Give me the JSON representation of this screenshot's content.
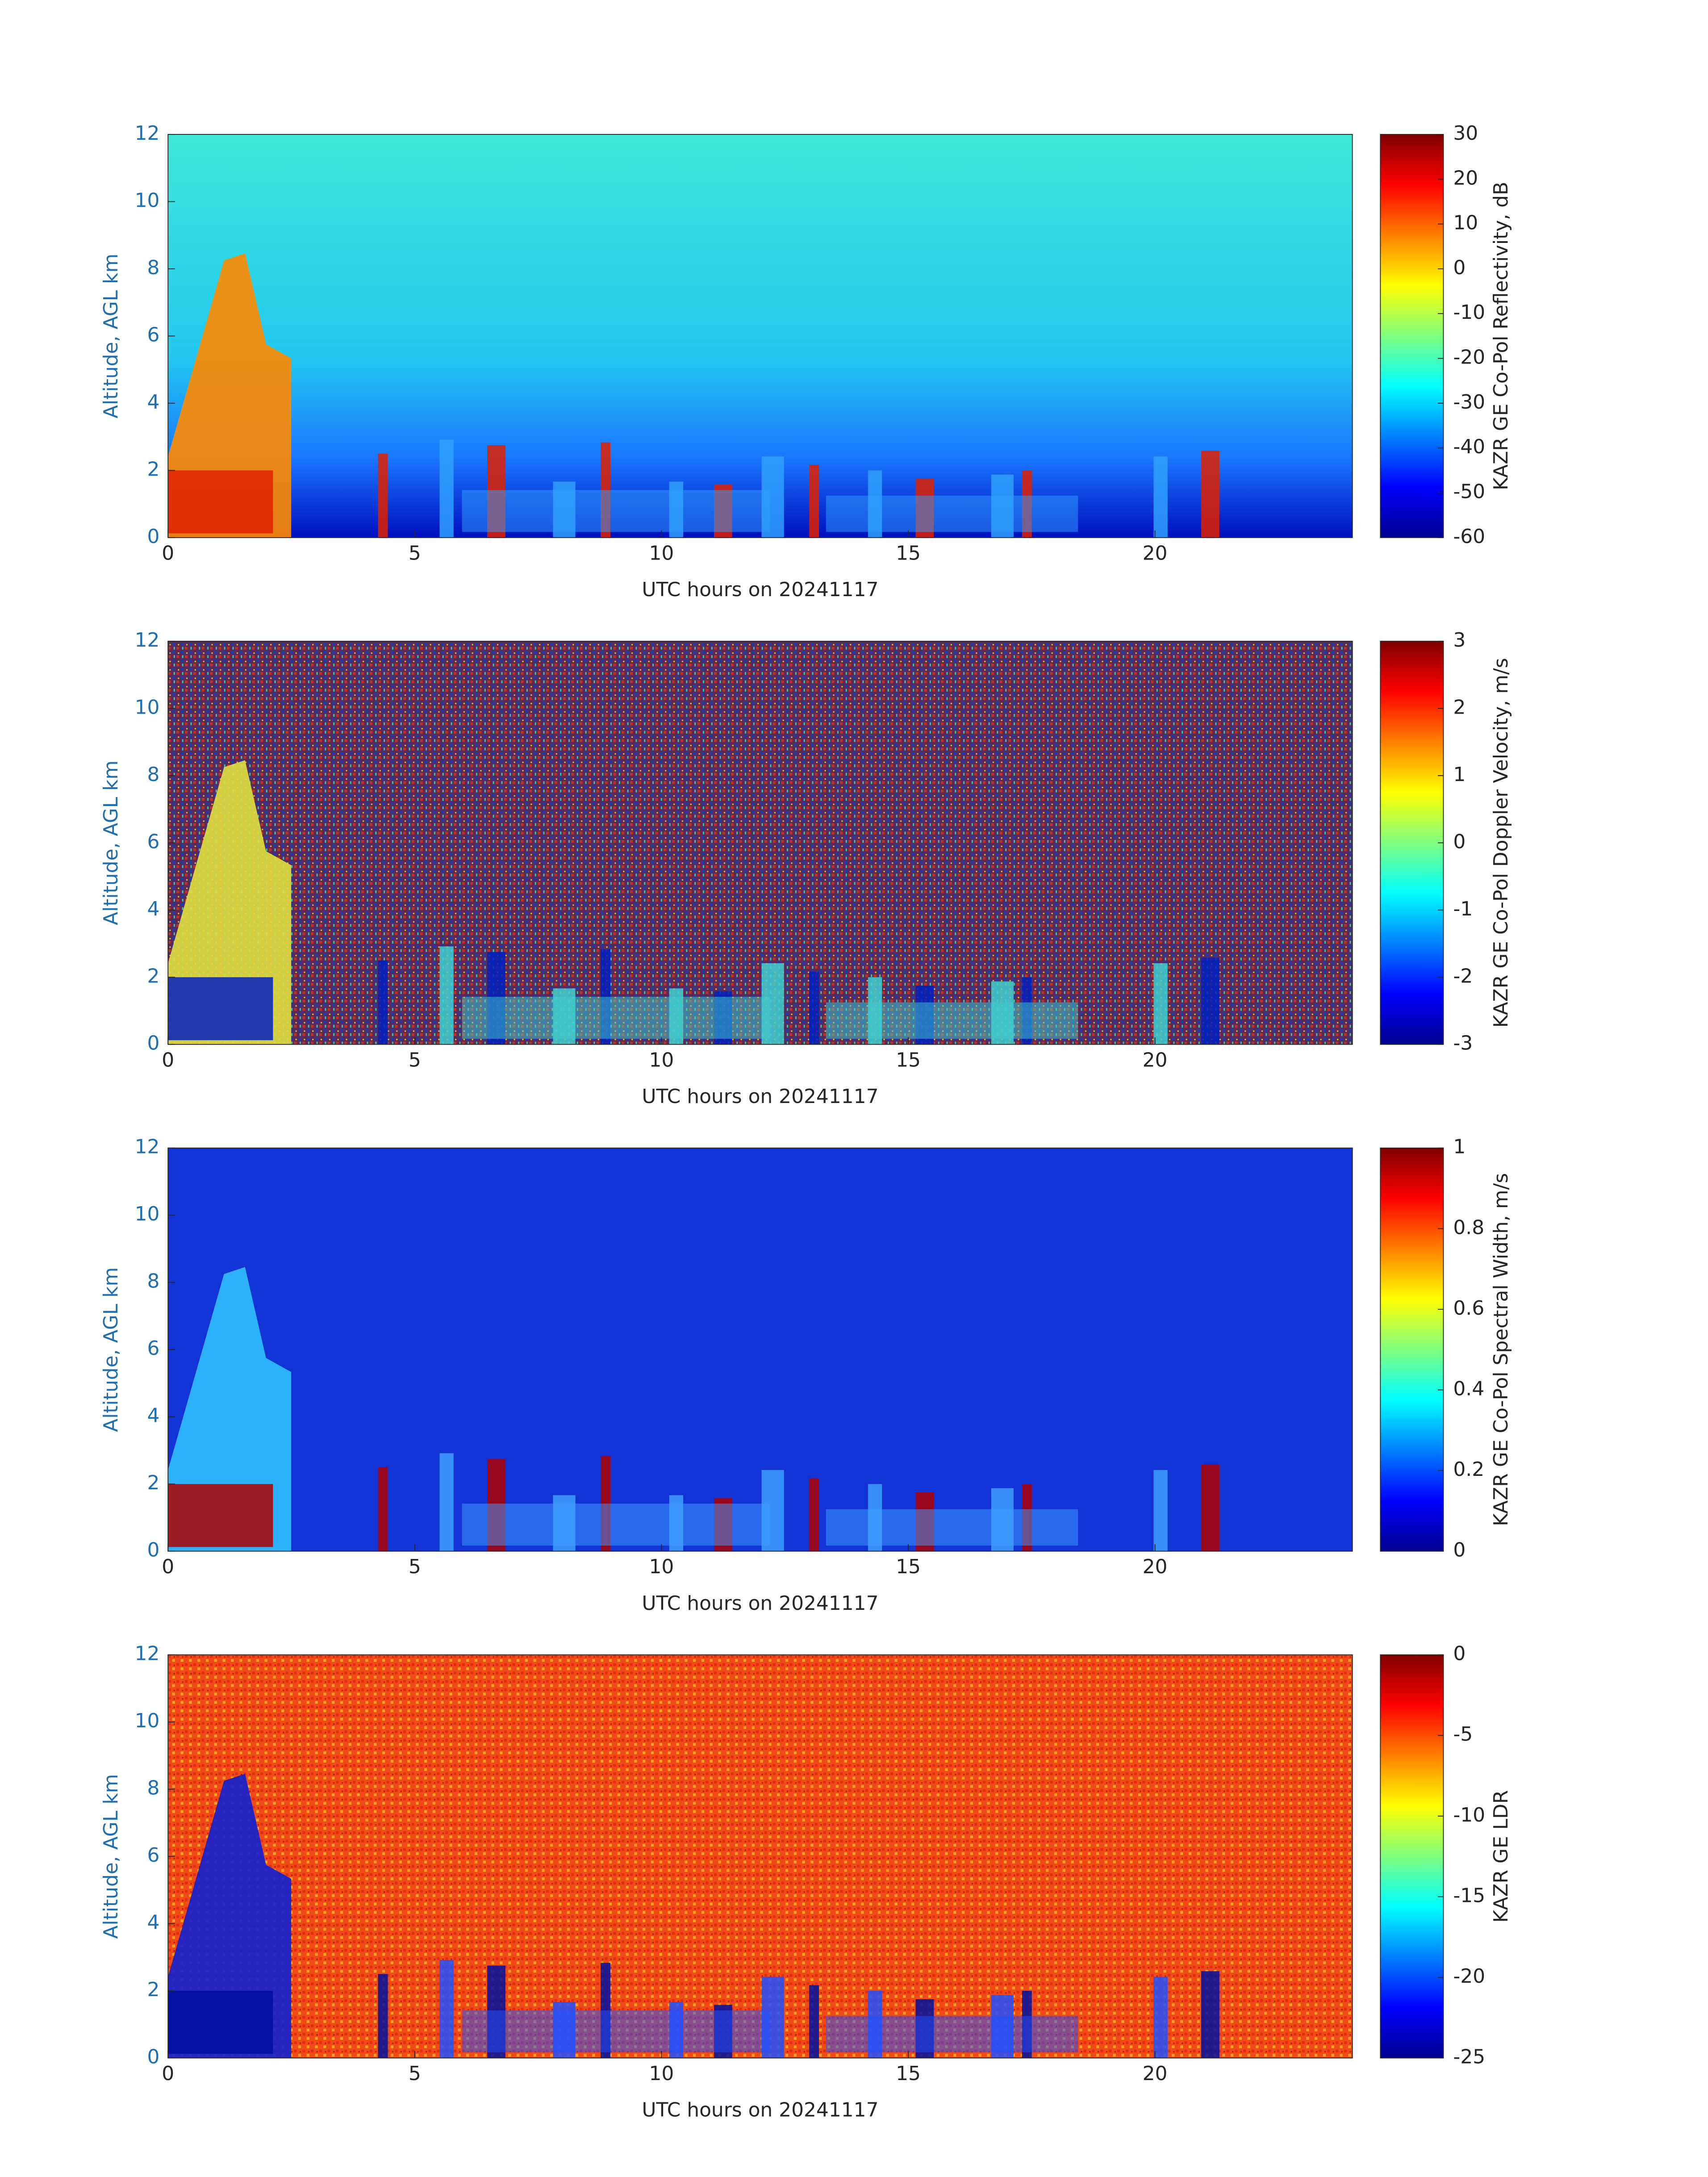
{
  "chart_data": [
    {
      "type": "heatmap",
      "xlabel": "UTC hours on 20241117",
      "ylabel": "Altitude, AGL km",
      "xlim": [
        0,
        24
      ],
      "xticks": [
        0,
        5,
        10,
        15,
        20
      ],
      "ylim": [
        0,
        12
      ],
      "yticks": [
        0,
        2,
        4,
        6,
        8,
        10,
        12
      ],
      "colormap": "jet",
      "colorbar_label": "KAZR GE Co-Pol Reflectivity, dB",
      "clim": [
        -60,
        30
      ],
      "cticks": [
        -60,
        -50,
        -40,
        -30,
        -20,
        -10,
        0,
        10,
        20,
        30
      ]
    },
    {
      "type": "heatmap",
      "xlabel": "UTC hours on 20241117",
      "ylabel": "Altitude, AGL km",
      "xlim": [
        0,
        24
      ],
      "xticks": [
        0,
        5,
        10,
        15,
        20
      ],
      "ylim": [
        0,
        12
      ],
      "yticks": [
        0,
        2,
        4,
        6,
        8,
        10,
        12
      ],
      "colormap": "jet",
      "colorbar_label": "KAZR GE Co-Pol Doppler Velocity, m/s",
      "clim": [
        -3,
        3
      ],
      "cticks": [
        -3,
        -2,
        -1,
        0,
        1,
        2,
        3
      ]
    },
    {
      "type": "heatmap",
      "xlabel": "UTC hours on 20241117",
      "ylabel": "Altitude, AGL km",
      "xlim": [
        0,
        24
      ],
      "xticks": [
        0,
        5,
        10,
        15,
        20
      ],
      "ylim": [
        0,
        12
      ],
      "yticks": [
        0,
        2,
        4,
        6,
        8,
        10,
        12
      ],
      "colormap": "jet",
      "colorbar_label": "KAZR GE Co-Pol Spectral Width, m/s",
      "clim": [
        0,
        1
      ],
      "cticks": [
        0,
        0.2,
        0.4,
        0.6,
        0.8,
        1
      ]
    },
    {
      "type": "heatmap",
      "xlabel": "UTC hours on 20241117",
      "ylabel": "Altitude, AGL km",
      "xlim": [
        0,
        24
      ],
      "xticks": [
        0,
        5,
        10,
        15,
        20
      ],
      "ylim": [
        0,
        12
      ],
      "yticks": [
        0,
        2,
        4,
        6,
        8,
        10,
        12
      ],
      "colormap": "jet",
      "colorbar_label": "KAZR GE LDR",
      "clim": [
        -25,
        0
      ],
      "cticks": [
        -25,
        -20,
        -15,
        -10,
        -5,
        0
      ]
    }
  ]
}
